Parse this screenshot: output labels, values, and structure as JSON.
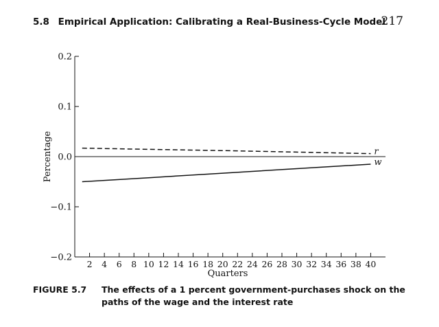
{
  "header": {
    "section_number": "5.8",
    "section_title": "Empirical Application: Calibrating a Real-Business-Cycle Model",
    "page_number": "217"
  },
  "caption": {
    "label": "FIGURE 5.7",
    "line1": "The effects of a 1 percent government-purchases shock on the",
    "line2": "paths of the wage and the interest rate"
  },
  "chart_data": {
    "type": "line",
    "title": "",
    "xlabel": "Quarters",
    "ylabel": "Percentage",
    "xlim": [
      0,
      42
    ],
    "ylim": [
      -0.2,
      0.2
    ],
    "x_ticks": [
      2,
      4,
      6,
      8,
      10,
      12,
      14,
      16,
      18,
      20,
      22,
      24,
      26,
      28,
      30,
      32,
      34,
      36,
      38,
      40
    ],
    "x_tick_labels": [
      "2",
      "4",
      "6",
      "8",
      "10",
      "12",
      "14",
      "16",
      "18",
      "20",
      "22",
      "24",
      "26",
      "28",
      "30",
      "32",
      "34",
      "36",
      "38",
      "40"
    ],
    "y_ticks": [
      -0.2,
      -0.1,
      0.0,
      0.1,
      0.2
    ],
    "y_tick_labels": [
      "−0.2",
      "−0.1",
      "0.0",
      "0.1",
      "0.2"
    ],
    "zero_line": true,
    "series": [
      {
        "name": "r",
        "style": "dashed",
        "x": [
          1,
          10,
          20,
          30,
          40
        ],
        "values": [
          0.017,
          0.0145,
          0.012,
          0.009,
          0.006
        ]
      },
      {
        "name": "w",
        "style": "solid",
        "x": [
          1,
          10,
          20,
          30,
          40
        ],
        "values": [
          -0.05,
          -0.042,
          -0.033,
          -0.024,
          -0.015
        ]
      }
    ]
  }
}
